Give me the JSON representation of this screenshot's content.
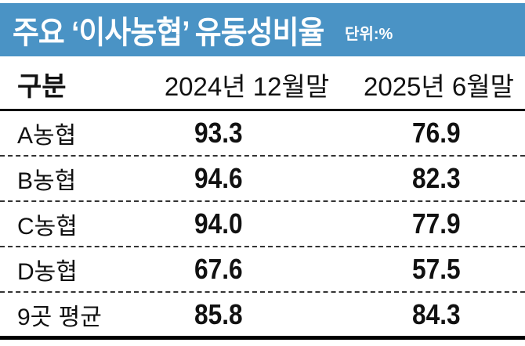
{
  "title": {
    "main": "주요 ‘이사농협’ 유동성비율",
    "unit": "단위:%",
    "background_color": "#4a93c5"
  },
  "table": {
    "headers": [
      "구분",
      "2024년 12월말",
      "2025년 6월말"
    ],
    "rows": [
      {
        "label": "A농협",
        "v1": "93.3",
        "v2": "76.9"
      },
      {
        "label": "B농협",
        "v1": "94.6",
        "v2": "82.3"
      },
      {
        "label": "C농협",
        "v1": "94.0",
        "v2": "77.9"
      },
      {
        "label": "D농협",
        "v1": "67.6",
        "v2": "57.5"
      },
      {
        "label": "9곳 평균",
        "v1": "85.8",
        "v2": "84.3"
      }
    ]
  },
  "chart_data": {
    "type": "table",
    "title": "주요 ‘이사농협’ 유동성비율",
    "unit": "%",
    "categories": [
      "A농협",
      "B농협",
      "C농협",
      "D농협",
      "9곳 평균"
    ],
    "series": [
      {
        "name": "2024년 12월말",
        "values": [
          93.3,
          94.6,
          94.0,
          67.6,
          85.8
        ]
      },
      {
        "name": "2025년 6월말",
        "values": [
          76.9,
          82.3,
          77.9,
          57.5,
          84.3
        ]
      }
    ]
  }
}
